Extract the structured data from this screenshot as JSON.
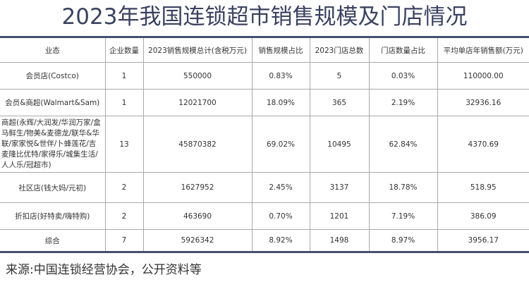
{
  "title": "2023年我国连锁超市销售规模及门店情况",
  "table": {
    "headers": [
      "业态",
      "企业数量",
      "2023销售规模总计(含税万元)",
      "销售规模占比",
      "2023门店总数",
      "门店数量占比",
      "平均单店年销售额(万元)"
    ],
    "rows": [
      [
        "会员店(Costco)",
        "1",
        "550000",
        "0.83%",
        "5",
        "0.03%",
        "110000.00"
      ],
      [
        "会员&商超(Walmart&Sam)",
        "1",
        "12021700",
        "18.09%",
        "365",
        "2.19%",
        "32936.16"
      ],
      [
        "商超(永辉/大润发/华润万家/盒马鲜生/物美&麦德龙/联华&华联/家家悦&世伴/卜蜂莲花/吉麦隆比优特/家得乐/城集生活/人人乐/冠超市)",
        "13",
        "45870382",
        "69.02%",
        "10495",
        "62.84%",
        "4370.69"
      ],
      [
        "社区店(钱大妈/元初)",
        "2",
        "1627952",
        "2.45%",
        "3137",
        "18.78%",
        "518.95"
      ],
      [
        "折扣店(好特卖/嗨特购)",
        "2",
        "463690",
        "0.70%",
        "1201",
        "7.19%",
        "386.09"
      ],
      [
        "综合",
        "7",
        "5926342",
        "8.92%",
        "1498",
        "8.97%",
        "3956.17"
      ]
    ]
  },
  "source": "来源:中国连锁经营协会，公开资料等",
  "colors": {
    "title": "#3a4260",
    "border": "#44506e"
  }
}
